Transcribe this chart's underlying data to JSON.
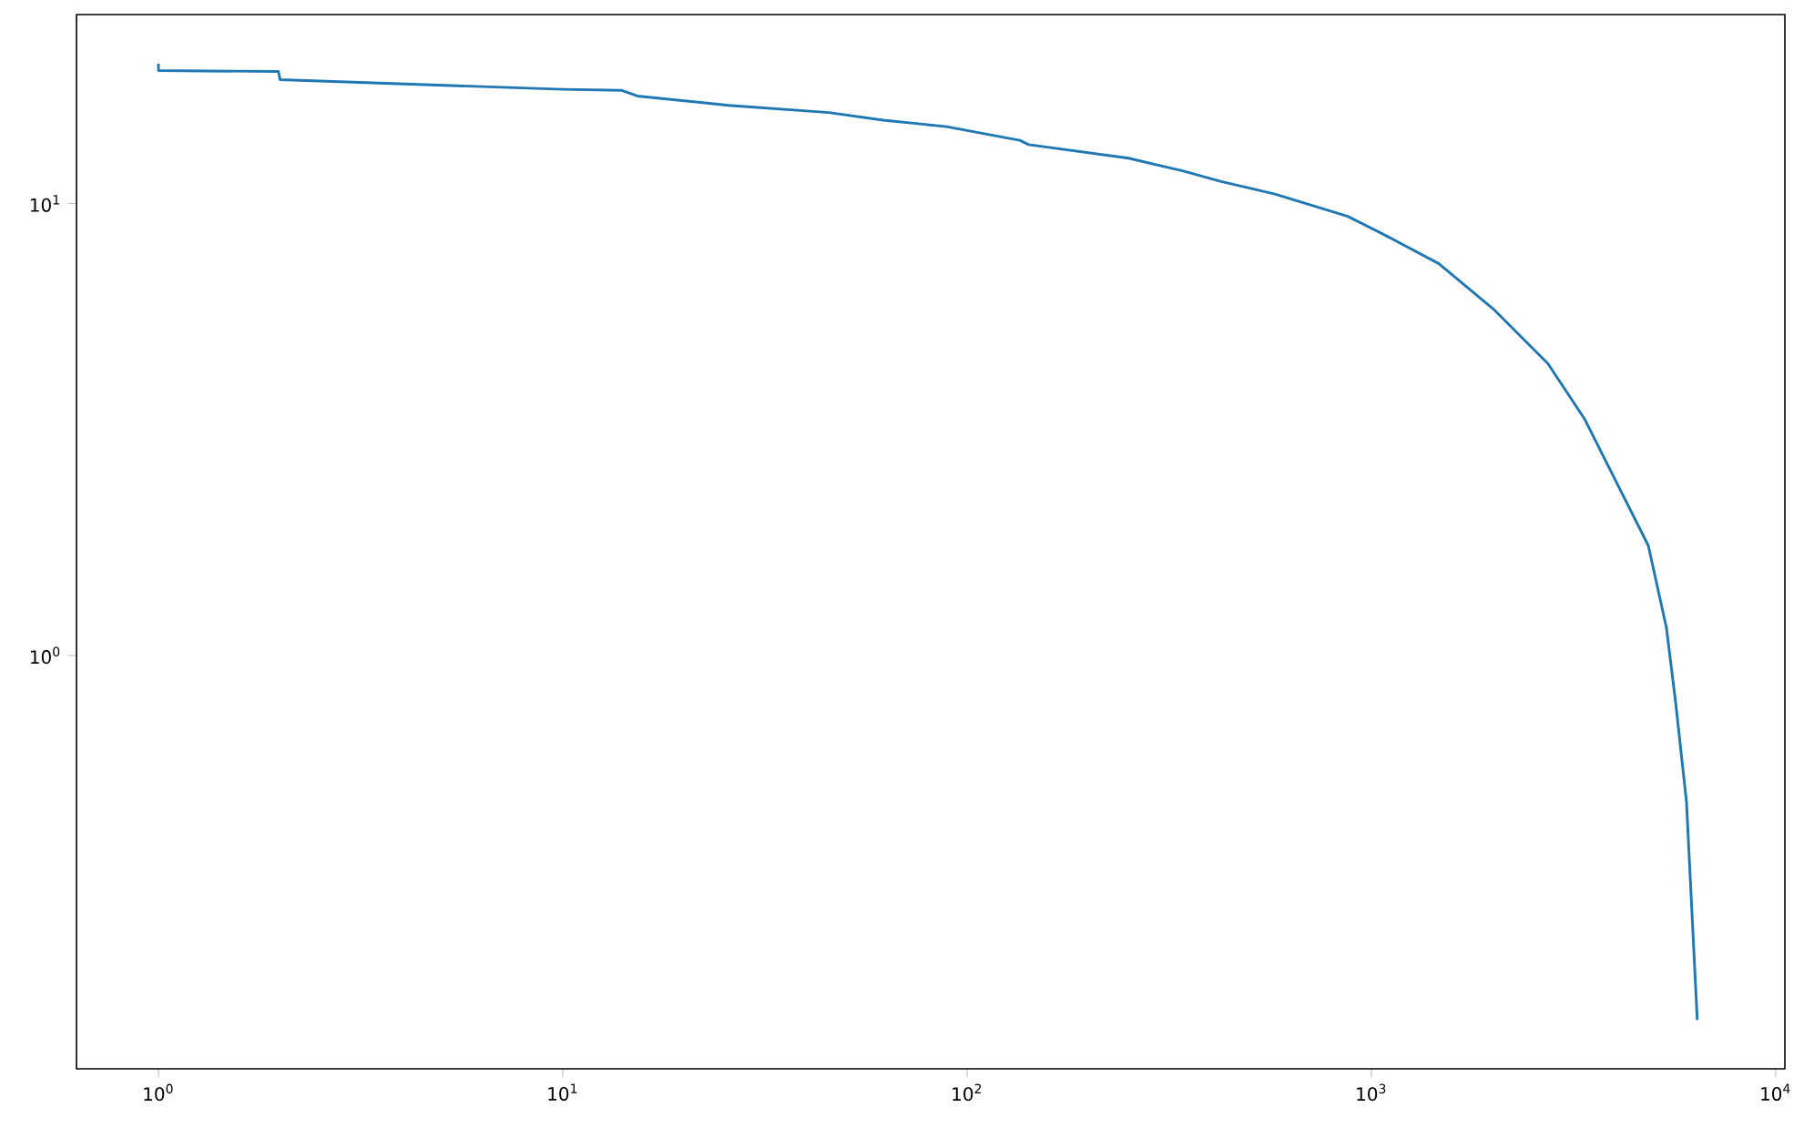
{
  "chart_data": {
    "type": "line",
    "log": "xy",
    "color": "#1f77b4",
    "x": [
      1,
      1,
      1.98,
      2,
      10,
      14,
      15.3,
      25.7,
      45.5,
      62,
      89,
      135,
      142,
      251,
      343,
      423,
      577,
      874,
      1074,
      1469,
      2005,
      2735,
      3366,
      4142,
      4842,
      5370,
      5655,
      6018,
      6400
    ],
    "values": [
      20.4,
      19.7,
      19.6,
      18.8,
      17.9,
      17.8,
      17.3,
      16.5,
      15.9,
      15.3,
      14.8,
      13.8,
      13.5,
      12.6,
      11.8,
      11.2,
      10.5,
      9.37,
      8.54,
      7.36,
      5.84,
      4.42,
      3.34,
      2.31,
      1.75,
      1.15,
      0.79,
      0.475,
      0.156
    ],
    "xlim": [
      0.627,
      10540
    ],
    "ylim": [
      0.1216,
      26.2
    ],
    "xticks": [
      {
        "value": 1,
        "label": "10$^{0}$"
      },
      {
        "value": 10,
        "label": "10$^{1}$"
      },
      {
        "value": 100,
        "label": "10$^{2}$"
      },
      {
        "value": 1000,
        "label": "10$^{3}$"
      },
      {
        "value": 10000,
        "label": "10$^{4}$"
      }
    ],
    "yticks": [
      {
        "value": 1,
        "label": "10$^{0}$"
      },
      {
        "value": 10,
        "label": "10$^{1}$"
      }
    ]
  }
}
